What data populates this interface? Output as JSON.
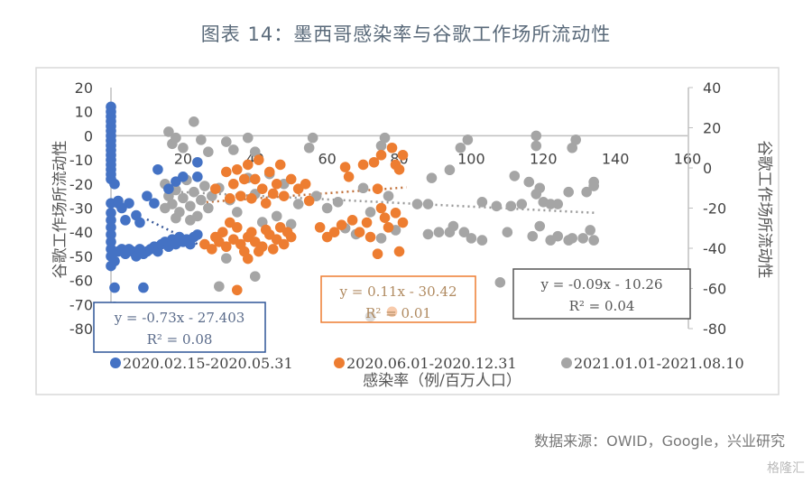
{
  "title": "图表 14：墨西哥感染率与谷歌工作场所流动性",
  "source": "数据来源：OWID，Google，兴业研究",
  "watermark": "格隆汇",
  "chart_data": {
    "type": "scatter",
    "xlabel": "感染率（例/百万人口）",
    "ylabel": "谷歌工作场所流动性",
    "y2label": "谷歌工作场所流动性",
    "xlim": [
      0,
      160
    ],
    "ylim": [
      -80,
      20
    ],
    "y2lim": [
      -80,
      40
    ],
    "xticks": [
      "0",
      "20",
      "40",
      "60",
      "80",
      "100",
      "120",
      "140",
      "160"
    ],
    "yticks": [
      "20",
      "10",
      "0",
      "-10",
      "-20",
      "-30",
      "-40",
      "-50",
      "-60",
      "-70",
      "-80"
    ],
    "y2ticks": [
      "40",
      "20",
      "0",
      "-20",
      "-40",
      "-60",
      "-80"
    ],
    "legend_position": "bottom",
    "series": [
      {
        "name": "2020.02.15-2020.05.31",
        "color": "#4472C4",
        "axis": "left",
        "trend": {
          "equation": "y = -0.73x - 27.403",
          "r2": "R² = 0.08",
          "slope": -0.73,
          "intercept": -27.403,
          "xrange": [
            10,
            24
          ]
        },
        "points": [
          [
            0,
            12
          ],
          [
            0,
            10
          ],
          [
            0,
            8
          ],
          [
            0,
            6
          ],
          [
            0,
            4
          ],
          [
            0,
            2
          ],
          [
            0,
            0
          ],
          [
            0,
            -2
          ],
          [
            0,
            -4
          ],
          [
            0,
            -6
          ],
          [
            0,
            -8
          ],
          [
            0,
            -10
          ],
          [
            0,
            -12
          ],
          [
            0,
            -14
          ],
          [
            0,
            -16
          ],
          [
            0,
            -18
          ],
          [
            1,
            -20
          ],
          [
            0,
            -28
          ],
          [
            0,
            -32
          ],
          [
            0,
            -35
          ],
          [
            0,
            -38
          ],
          [
            0,
            -41
          ],
          [
            0,
            -44
          ],
          [
            0,
            -47
          ],
          [
            0,
            -50
          ],
          [
            0,
            -54
          ],
          [
            1,
            -52
          ],
          [
            2,
            -48
          ],
          [
            3,
            -47
          ],
          [
            4,
            -49
          ],
          [
            5,
            -47
          ],
          [
            6,
            -48
          ],
          [
            7,
            -50
          ],
          [
            8,
            -47
          ],
          [
            9,
            -49
          ],
          [
            10,
            -48
          ],
          [
            11,
            -47
          ],
          [
            12,
            -46
          ],
          [
            13,
            -48
          ],
          [
            14,
            -45
          ],
          [
            15,
            -44
          ],
          [
            16,
            -46
          ],
          [
            17,
            -43
          ],
          [
            18,
            -45
          ],
          [
            19,
            -42
          ],
          [
            20,
            -44
          ],
          [
            21,
            -43
          ],
          [
            22,
            -45
          ],
          [
            23,
            -42
          ],
          [
            24,
            -41
          ],
          [
            2,
            -28
          ],
          [
            3,
            -30
          ],
          [
            5,
            -28
          ],
          [
            7,
            -33
          ],
          [
            8,
            -36
          ],
          [
            10,
            -25
          ],
          [
            12,
            -28
          ],
          [
            13,
            -14
          ],
          [
            16,
            -22
          ],
          [
            18,
            -19
          ],
          [
            20,
            -17
          ],
          [
            24,
            -17
          ],
          [
            24,
            -11
          ],
          [
            1,
            -63
          ],
          [
            9,
            -63
          ],
          [
            1,
            -71
          ],
          [
            2,
            -27
          ],
          [
            4,
            -35
          ]
        ]
      },
      {
        "name": "2020.06.01-2020.12.31",
        "color": "#ED7D31",
        "axis": "left",
        "trend": {
          "equation": "y = 0.11x - 30.42",
          "r2": "R² = 0.01",
          "slope": 0.11,
          "intercept": -30.42,
          "xrange": [
            25,
            82
          ]
        },
        "points": [
          [
            26,
            -45
          ],
          [
            28,
            -47
          ],
          [
            30,
            -44
          ],
          [
            32,
            -46
          ],
          [
            34,
            -43
          ],
          [
            36,
            -45
          ],
          [
            38,
            -42
          ],
          [
            40,
            -44
          ],
          [
            42,
            -46
          ],
          [
            44,
            -41
          ],
          [
            46,
            -43
          ],
          [
            48,
            -45
          ],
          [
            50,
            -42
          ],
          [
            35,
            -38
          ],
          [
            39,
            -40
          ],
          [
            43,
            -39
          ],
          [
            47,
            -38
          ],
          [
            31,
            -40
          ],
          [
            37,
            -48
          ],
          [
            41,
            -48
          ],
          [
            33,
            -36
          ],
          [
            45,
            -47
          ],
          [
            49,
            -40
          ],
          [
            29,
            -42
          ],
          [
            32,
            -15
          ],
          [
            34,
            -20
          ],
          [
            36,
            -25
          ],
          [
            38,
            -12
          ],
          [
            40,
            -18
          ],
          [
            42,
            -22
          ],
          [
            44,
            -15
          ],
          [
            46,
            -20
          ],
          [
            48,
            -25
          ],
          [
            50,
            -18
          ],
          [
            52,
            -22
          ],
          [
            35,
            -14
          ],
          [
            39,
            -26
          ],
          [
            43,
            -28
          ],
          [
            47,
            -12
          ],
          [
            37,
            -18
          ],
          [
            41,
            -10
          ],
          [
            45,
            -24
          ],
          [
            33,
            -26
          ],
          [
            29,
            -22
          ],
          [
            54,
            -20
          ],
          [
            55,
            -27
          ],
          [
            38,
            -51
          ],
          [
            35,
            -64
          ],
          [
            65,
            -13
          ],
          [
            66,
            -17
          ],
          [
            70,
            -12
          ],
          [
            71,
            -36
          ],
          [
            72,
            -42
          ],
          [
            73,
            -11
          ],
          [
            74,
            -22
          ],
          [
            74,
            -49
          ],
          [
            75,
            -8
          ],
          [
            76,
            -34
          ],
          [
            78,
            -5
          ],
          [
            79,
            -12
          ],
          [
            80,
            -14
          ],
          [
            80,
            -48
          ],
          [
            81,
            -8
          ],
          [
            81,
            -36
          ],
          [
            69,
            -40
          ],
          [
            67,
            -35
          ],
          [
            75,
            -30
          ],
          [
            77,
            -38
          ],
          [
            79,
            -32
          ],
          [
            78,
            -73
          ],
          [
            62,
            -40
          ],
          [
            64,
            -37
          ],
          [
            58,
            -38
          ],
          [
            60,
            -42
          ]
        ]
      },
      {
        "name": "2021.01.01-2021.08.10",
        "color": "#A5A5A5",
        "axis": "right",
        "trend": {
          "equation": "y = -0.09x - 10.26",
          "r2": "R² = 0.04",
          "slope": -0.09,
          "intercept": -10.26,
          "xrange": [
            15,
            135
          ]
        },
        "points": [
          [
            16,
            18
          ],
          [
            17,
            12
          ],
          [
            18,
            15
          ],
          [
            20,
            10
          ],
          [
            23,
            23
          ],
          [
            25,
            14
          ],
          [
            27,
            8
          ],
          [
            32,
            13
          ],
          [
            34,
            9
          ],
          [
            38,
            15
          ],
          [
            40,
            8
          ],
          [
            56,
            15
          ],
          [
            55,
            10
          ],
          [
            76,
            15
          ],
          [
            75,
            11
          ],
          [
            15,
            -8
          ],
          [
            16,
            -14
          ],
          [
            17,
            -18
          ],
          [
            18,
            -11
          ],
          [
            19,
            -22
          ],
          [
            20,
            -15
          ],
          [
            21,
            -6
          ],
          [
            22,
            -19
          ],
          [
            23,
            -12
          ],
          [
            24,
            -24
          ],
          [
            25,
            -16
          ],
          [
            26,
            -9
          ],
          [
            27,
            -20
          ],
          [
            15,
            -20
          ],
          [
            18,
            -25
          ],
          [
            22,
            -26
          ],
          [
            28,
            -14
          ],
          [
            30,
            -10
          ],
          [
            33,
            -16
          ],
          [
            35,
            -22
          ],
          [
            38,
            -5
          ],
          [
            40,
            -13
          ],
          [
            42,
            -27
          ],
          [
            44,
            -3
          ],
          [
            46,
            -24
          ],
          [
            48,
            -8
          ],
          [
            50,
            -28
          ],
          [
            52,
            -18
          ],
          [
            57,
            -14
          ],
          [
            60,
            -20
          ],
          [
            63,
            -17
          ],
          [
            65,
            -30
          ],
          [
            68,
            -33
          ],
          [
            70,
            -10
          ],
          [
            72,
            -22
          ],
          [
            75,
            -35
          ],
          [
            77,
            -14
          ],
          [
            79,
            -31
          ],
          [
            32,
            -45
          ],
          [
            30,
            -59
          ],
          [
            40,
            -54
          ],
          [
            72,
            -74
          ],
          [
            85,
            -18
          ],
          [
            88,
            -18
          ],
          [
            89,
            -5
          ],
          [
            94,
            -1
          ],
          [
            97,
            10
          ],
          [
            99,
            14
          ],
          [
            103,
            -17
          ],
          [
            107,
            -19
          ],
          [
            111,
            -19
          ],
          [
            114,
            -18
          ],
          [
            112,
            -4
          ],
          [
            116,
            -7
          ],
          [
            118,
            16
          ],
          [
            118,
            11
          ],
          [
            119,
            -10
          ],
          [
            118,
            -13
          ],
          [
            120,
            -17
          ],
          [
            122,
            -18
          ],
          [
            124,
            -18
          ],
          [
            127,
            -12
          ],
          [
            129,
            14
          ],
          [
            128,
            10
          ],
          [
            132,
            -12
          ],
          [
            134,
            -7
          ],
          [
            134,
            -9
          ],
          [
            88,
            -33
          ],
          [
            91,
            -32
          ],
          [
            94,
            -32
          ],
          [
            95,
            -29
          ],
          [
            98,
            -32
          ],
          [
            100,
            -35
          ],
          [
            103,
            -36
          ],
          [
            110,
            -32
          ],
          [
            117,
            -34
          ],
          [
            119,
            -29
          ],
          [
            122,
            -36
          ],
          [
            124,
            -34
          ],
          [
            127,
            -36
          ],
          [
            128,
            -35
          ],
          [
            131,
            -35
          ],
          [
            133,
            -31
          ],
          [
            134,
            -36
          ],
          [
            108,
            -57
          ]
        ]
      }
    ]
  }
}
